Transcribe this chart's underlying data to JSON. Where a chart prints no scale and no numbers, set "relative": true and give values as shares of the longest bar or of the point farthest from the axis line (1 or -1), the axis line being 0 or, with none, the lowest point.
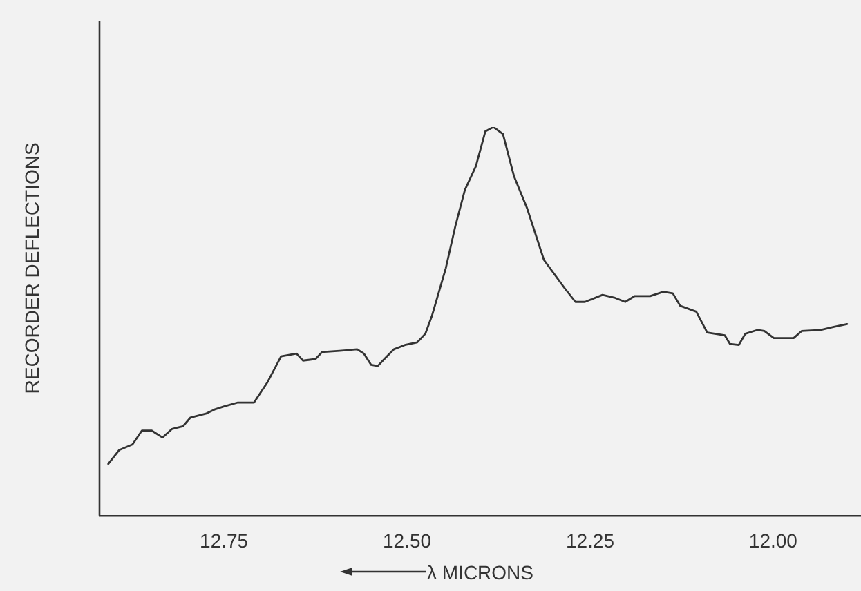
{
  "chart_data": {
    "type": "line",
    "relative": true,
    "xlabel": "λ MICRONS",
    "ylabel": "RECORDER DEFLECTIONS",
    "xlim": [
      12.92,
      11.88
    ],
    "xticks": [
      {
        "value": 12.75,
        "label": "12.75"
      },
      {
        "value": 12.5,
        "label": "12.50"
      },
      {
        "value": 12.25,
        "label": "12.25"
      },
      {
        "value": 12.0,
        "label": "12.00"
      }
    ],
    "grid": false,
    "legend": false,
    "marker": "none",
    "line_style": "solid",
    "series": [
      {
        "color": "#333333",
        "x": [
          12.908,
          12.893,
          12.875,
          12.862,
          12.849,
          12.834,
          12.821,
          12.806,
          12.796,
          12.774,
          12.763,
          12.75,
          12.731,
          12.709,
          12.691,
          12.672,
          12.651,
          12.642,
          12.625,
          12.616,
          12.592,
          12.568,
          12.559,
          12.549,
          12.54,
          12.531,
          12.518,
          12.503,
          12.486,
          12.475,
          12.466,
          12.447,
          12.434,
          12.421,
          12.406,
          12.393,
          12.382,
          12.369,
          12.354,
          12.336,
          12.313,
          12.285,
          12.27,
          12.257,
          12.233,
          12.217,
          12.202,
          12.189,
          12.168,
          12.15,
          12.137,
          12.127,
          12.105,
          12.09,
          12.066,
          12.059,
          12.047,
          12.038,
          12.021,
          12.012,
          11.999,
          11.972,
          11.961,
          11.935,
          11.917,
          11.899
        ],
        "values": [
          0.133,
          0.169,
          0.183,
          0.219,
          0.219,
          0.201,
          0.223,
          0.23,
          0.252,
          0.263,
          0.273,
          0.281,
          0.291,
          0.291,
          0.342,
          0.41,
          0.417,
          0.399,
          0.403,
          0.421,
          0.424,
          0.428,
          0.417,
          0.388,
          0.385,
          0.403,
          0.428,
          0.439,
          0.446,
          0.468,
          0.514,
          0.637,
          0.745,
          0.838,
          0.899,
          0.989,
          1,
          0.982,
          0.874,
          0.791,
          0.658,
          0.586,
          0.55,
          0.55,
          0.568,
          0.561,
          0.55,
          0.565,
          0.565,
          0.576,
          0.572,
          0.54,
          0.525,
          0.471,
          0.464,
          0.442,
          0.439,
          0.468,
          0.478,
          0.475,
          0.457,
          0.457,
          0.475,
          0.478,
          0.486,
          0.493
        ]
      }
    ]
  }
}
